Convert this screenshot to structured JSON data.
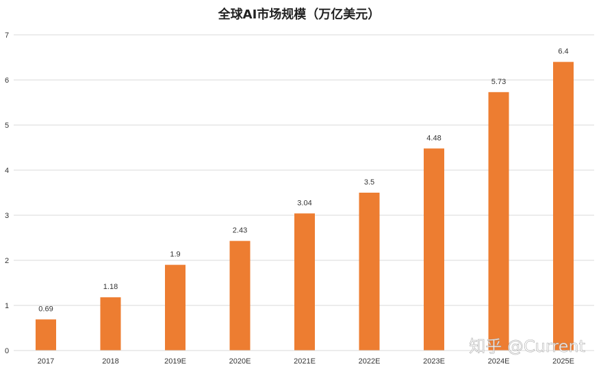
{
  "chart_data": {
    "type": "bar",
    "title": "全球AI市场规模（万亿美元）",
    "categories": [
      "2017",
      "2018",
      "2019E",
      "2020E",
      "2021E",
      "2022E",
      "2023E",
      "2024E",
      "2025E"
    ],
    "values": [
      0.69,
      1.18,
      1.9,
      2.43,
      3.04,
      3.5,
      4.48,
      5.73,
      6.4
    ],
    "data_labels": [
      "0.69",
      "1.18",
      "1.9",
      "2.43",
      "3.04",
      "3.5",
      "4.48",
      "5.73",
      "6.4"
    ],
    "y_ticks": [
      0,
      1,
      2,
      3,
      4,
      5,
      6,
      7
    ],
    "ylim": [
      0,
      7
    ],
    "grid": true,
    "bar_color": "#ED7D31",
    "xlabel": "",
    "ylabel": ""
  },
  "watermark": {
    "text": "知乎 @Current"
  }
}
